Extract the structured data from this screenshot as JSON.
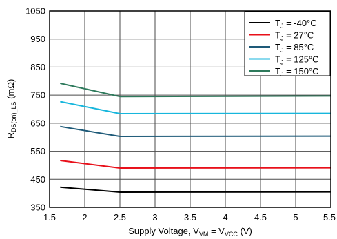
{
  "chart_data": {
    "type": "line",
    "xlabel": {
      "main": "Supply Voltage, V",
      "sub1": "VM",
      "mid": " = V",
      "sub2": "VCC",
      "tail": " (V)"
    },
    "ylabel": {
      "main": "R",
      "sub": "DS(on)_LS",
      "tail": " (mΩ)"
    },
    "xlim": [
      1.5,
      5.5
    ],
    "ylim": [
      350,
      1050
    ],
    "x_ticks": [
      "1.5",
      "2",
      "2.5",
      "3",
      "3.5",
      "4",
      "4.5",
      "5",
      "5.5"
    ],
    "y_ticks": [
      "350",
      "450",
      "550",
      "650",
      "750",
      "850",
      "950",
      "1050"
    ],
    "grid": true,
    "legend_position": "top-right",
    "series": [
      {
        "legend": {
          "pre": "T",
          "sub": "J",
          "post": " = -40°C"
        },
        "color": "#000000",
        "x": [
          1.65,
          2.5,
          5.5
        ],
        "y": [
          422,
          404,
          405
        ]
      },
      {
        "legend": {
          "pre": "T",
          "sub": "J",
          "post": " = 27°C"
        },
        "color": "#e8101a",
        "x": [
          1.65,
          2.5,
          5.5
        ],
        "y": [
          517,
          490,
          491
        ]
      },
      {
        "legend": {
          "pre": "T",
          "sub": "J",
          "post": " = 85°C"
        },
        "color": "#1e5a78",
        "x": [
          1.65,
          2.5,
          5.5
        ],
        "y": [
          638,
          603,
          604
        ]
      },
      {
        "legend": {
          "pre": "T",
          "sub": "J",
          "post": " = 125°C"
        },
        "color": "#17b6dc",
        "x": [
          1.65,
          2.5,
          5.5
        ],
        "y": [
          727,
          684,
          685
        ]
      },
      {
        "legend": {
          "pre": "T",
          "sub": "J",
          "post": " = 150°C"
        },
        "color": "#2e7a5c",
        "x": [
          1.65,
          2.5,
          5.5
        ],
        "y": [
          792,
          745,
          747
        ]
      }
    ]
  }
}
